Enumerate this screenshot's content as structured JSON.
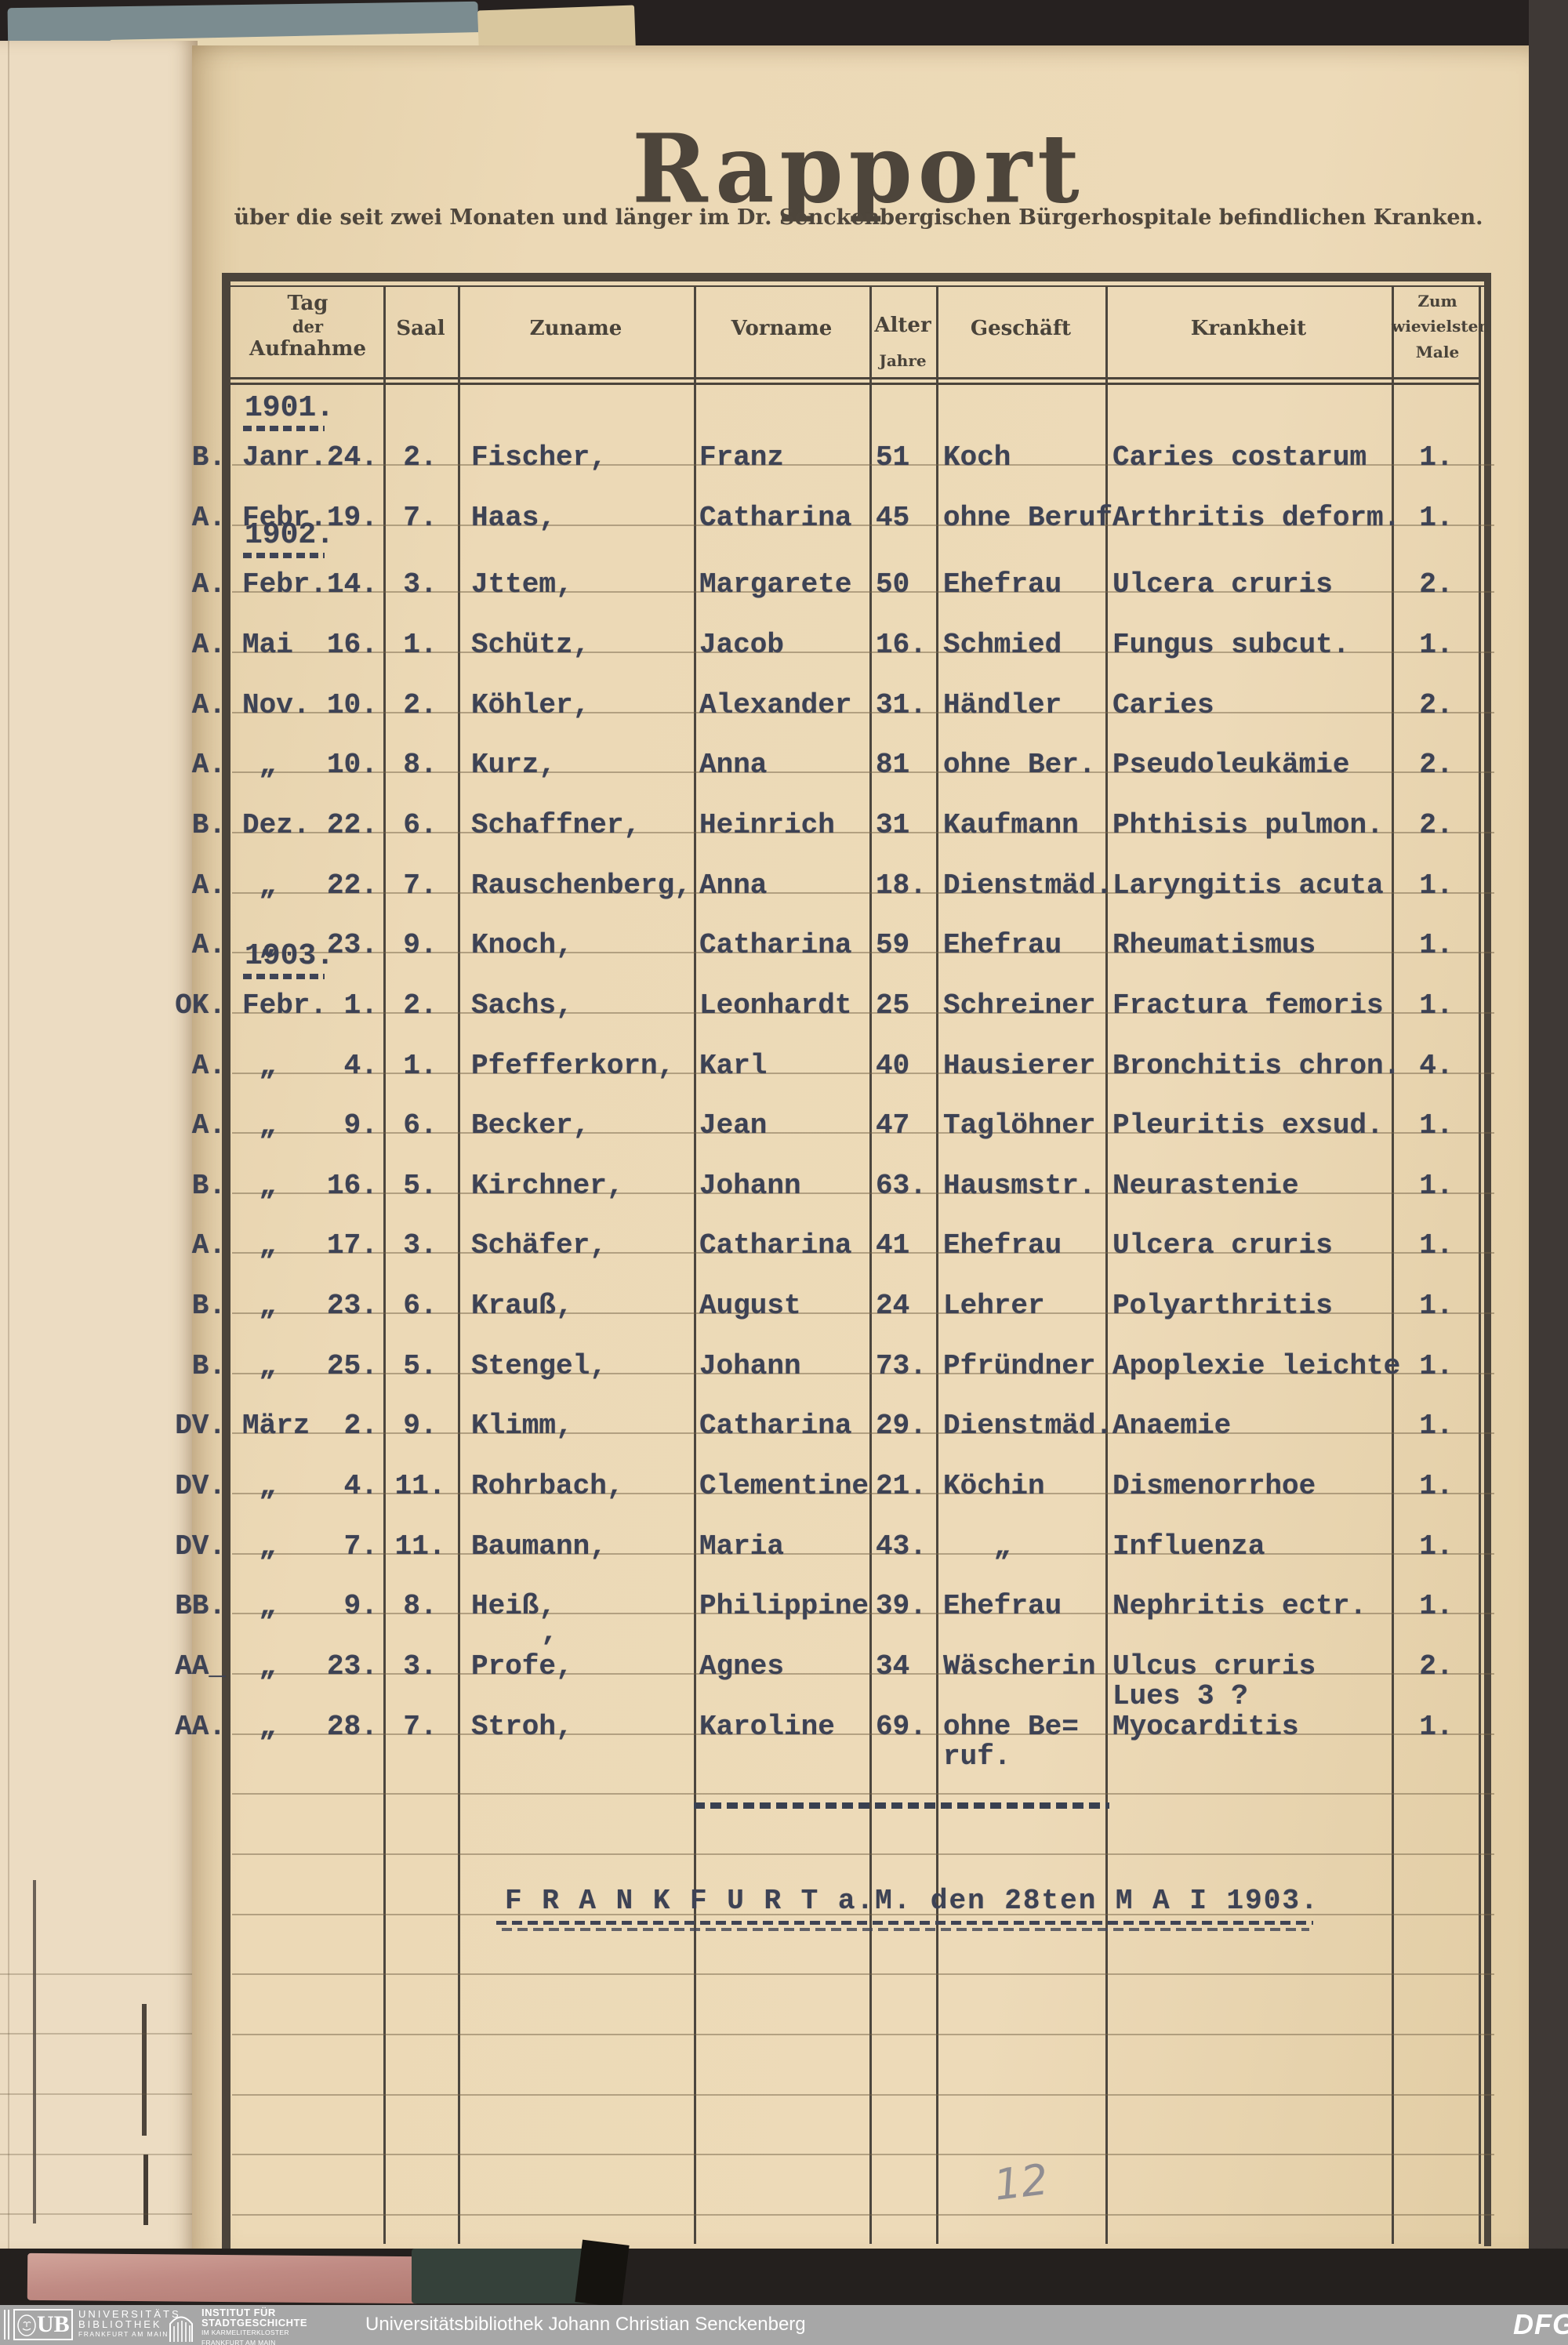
{
  "page": {
    "title": "Rapport",
    "subtitle": "über die seit zwei Monaten und länger im Dr. Senckenbergischen Bürgerhospitale befindlichen Kranken."
  },
  "table": {
    "headers": {
      "tag": [
        "Tag",
        "der",
        "Aufnahme"
      ],
      "saal": "Saal",
      "zuname": "Zuname",
      "vorname": "Vorname",
      "alter": "Alter",
      "alter_sub": "Jahre",
      "geschaeft": "Geschäft",
      "krankheit": "Krankheit",
      "male": [
        "Zum",
        "wievielsten",
        "Male"
      ]
    },
    "rows": [
      {
        "section": "1901."
      },
      {
        "margin": "B.",
        "date": "Janr.24.",
        "saal": "2.",
        "zuname": "Fischer,",
        "vorname": "Franz",
        "alter": "51",
        "geschaeft": "Koch",
        "krankheit": "Caries costarum",
        "male": "1."
      },
      {
        "margin": "A.",
        "date": "Febr.19.",
        "saal": "7.",
        "zuname": "Haas,",
        "vorname": "Catharina",
        "alter": "45",
        "geschaeft": "ohne Beruf",
        "krankheit": "Arthritis deform.",
        "male": "1."
      },
      {
        "section": "1902.",
        "gap": 9
      },
      {
        "margin": "A.",
        "date": "Febr.14.",
        "saal": "3.",
        "zuname": "Jttem,",
        "vorname": "Margarete",
        "alter": "50",
        "geschaeft": "Ehefrau",
        "krankheit": "Ulcera cruris",
        "male": "2."
      },
      {
        "margin": "A.",
        "date": "Mai  16.",
        "saal": "1.",
        "zuname": "Schütz,",
        "vorname": "Jacob",
        "alter": "16.",
        "geschaeft": "Schmied",
        "krankheit": "Fungus subcut.",
        "male": "1."
      },
      {
        "margin": "A.",
        "date": "Nov. 10.",
        "saal": "2.",
        "zuname": "Köhler,",
        "vorname": "Alexander",
        "alter": "31.",
        "geschaeft": "Händler",
        "krankheit": "Caries",
        "male": "2."
      },
      {
        "margin": "A.",
        "date": " „   10.",
        "saal": "8.",
        "zuname": "Kurz,",
        "vorname": "Anna",
        "alter": "81",
        "geschaeft": "ohne Ber.",
        "krankheit": "Pseudoleukämie",
        "male": "2."
      },
      {
        "margin": "B.",
        "date": "Dez. 22.",
        "saal": "6.",
        "zuname": "Schaffner,",
        "vorname": "Heinrich",
        "alter": "31",
        "geschaeft": "Kaufmann",
        "krankheit": "Phthisis pulmon.",
        "male": "2."
      },
      {
        "margin": "A.",
        "date": " „   22.",
        "saal": "7.",
        "zuname": "Rauschenberg,",
        "vorname": "Anna",
        "alter": "18.",
        "geschaeft": "Dienstmäd.",
        "krankheit": "Laryngitis acuta",
        "male": "1."
      },
      {
        "margin": "A.",
        "date": " „   23.",
        "saal": "9.",
        "zuname": "Knoch,",
        "vorname": "Catharina",
        "alter": "59",
        "geschaeft": "Ehefrau",
        "krankheit": "Rheumatismus",
        "male": "1."
      },
      {
        "section": "1903."
      },
      {
        "margin": "OK.",
        "date": "Febr. 1.",
        "saal": "2.",
        "zuname": "Sachs,",
        "vorname": "Leonhardt",
        "alter": "25",
        "geschaeft": "Schreiner",
        "krankheit": "Fractura femoris",
        "male": "1."
      },
      {
        "margin": "A.",
        "date": " „    4.",
        "saal": "1.",
        "zuname": "Pfefferkorn,",
        "vorname": "Karl",
        "alter": "40",
        "geschaeft": "Hausierer",
        "krankheit": "Bronchitis chron.",
        "male": "4."
      },
      {
        "margin": "A.",
        "date": " „    9.",
        "saal": "6.",
        "zuname": "Becker,",
        "vorname": "Jean",
        "alter": "47",
        "geschaeft": "Taglöhner",
        "krankheit": "Pleuritis exsud.",
        "male": "1."
      },
      {
        "margin": "B.",
        "date": " „   16.",
        "saal": "5.",
        "zuname": "Kirchner,",
        "vorname": "Johann",
        "alter": "63.",
        "geschaeft": "Hausmstr.",
        "krankheit": "Neurastenie",
        "male": "1."
      },
      {
        "margin": "A.",
        "date": " „   17.",
        "saal": "3.",
        "zuname": "Schäfer,",
        "vorname": "Catharina",
        "alter": "41",
        "geschaeft": "Ehefrau",
        "krankheit": "Ulcera cruris",
        "male": "1."
      },
      {
        "margin": "B.",
        "date": " „   23.",
        "saal": "6.",
        "zuname": "Krauß,",
        "vorname": "August",
        "alter": "24",
        "geschaeft": "Lehrer",
        "krankheit": "Polyarthritis",
        "male": "1."
      },
      {
        "margin": "B.",
        "date": " „   25.",
        "saal": "5.",
        "zuname": "Stengel,",
        "vorname": "Johann",
        "alter": "73.",
        "geschaeft": "Pfründner",
        "krankheit": "Apoplexie leichte",
        "male": "1."
      },
      {
        "margin": "DV.",
        "date": "März  2.",
        "saal": "9.",
        "zuname": "Klimm,",
        "vorname": "Catharina",
        "alter": "29.",
        "geschaeft": "Dienstmäd.",
        "krankheit": "Anaemie",
        "male": "1."
      },
      {
        "margin": "DV.",
        "date": " „    4.",
        "saal": "11.",
        "zuname": "Rohrbach,",
        "vorname": "Clementine",
        "alter": "21.",
        "geschaeft": "Köchin",
        "krankheit": "Dismenorrhoe",
        "male": "1."
      },
      {
        "margin": "DV.",
        "date": " „    7.",
        "saal": "11.",
        "zuname": "Baumann,",
        "vorname": "Maria",
        "alter": "43.",
        "geschaeft": "   „",
        "krankheit": "Influenza",
        "male": "1."
      },
      {
        "margin": "BB.",
        "date": " „    9.",
        "saal": "8.",
        "zuname": "Heiß,",
        "vorname": "Philippine",
        "alter": "39.",
        "geschaeft": "Ehefrau",
        "krankheit": "Nephritis ectr.",
        "male": "1."
      },
      {
        "margin": "AA_",
        "date": " „   23.",
        "saal": "3.",
        "zuname": "Profe,",
        "accent": "’",
        "vorname": "Agnes",
        "alter": "34",
        "geschaeft": "Wäscherin",
        "krankheit": [
          "Ulcus cruris",
          "Lues 3 ?"
        ],
        "male": "2."
      },
      {
        "margin": "AA.",
        "date": " „   28.",
        "saal": "7.",
        "zuname": "Stroh,",
        "vorname": "Karoline",
        "alter": "69.",
        "geschaeft": [
          "ohne Be=",
          "ruf."
        ],
        "krankheit": "Myocarditis",
        "male": "1."
      }
    ]
  },
  "footer": {
    "dateline": "F R A N K F U R T a.M. den 28ten M A I 1903."
  },
  "annotations": {
    "pencil_mark": "12"
  },
  "bottom_bar": {
    "ub_logo": {
      "abbr": "UB",
      "lines": [
        "UNIVERSITÄTS",
        "BIBLIOTHEK",
        "FRANKFURT AM MAIN"
      ]
    },
    "isg_logo": {
      "lines_bold": [
        "INSTITUT FÜR",
        "STADTGESCHICHTE"
      ],
      "lines_small": [
        "IM KARMELITERKLOSTER",
        "FRANKFURT AM MAIN"
      ]
    },
    "center_text": "Universitätsbibliothek Johann Christian Senckenberg",
    "dfg": "DFG"
  },
  "colors": {
    "typewriter_ink": "#3d4254",
    "printed_ink": "#49433a",
    "paper": "#ecd9b6",
    "left_page": "#ecdcc2",
    "scan_background": "#262120",
    "bottom_bar": "#a7a7a7"
  }
}
